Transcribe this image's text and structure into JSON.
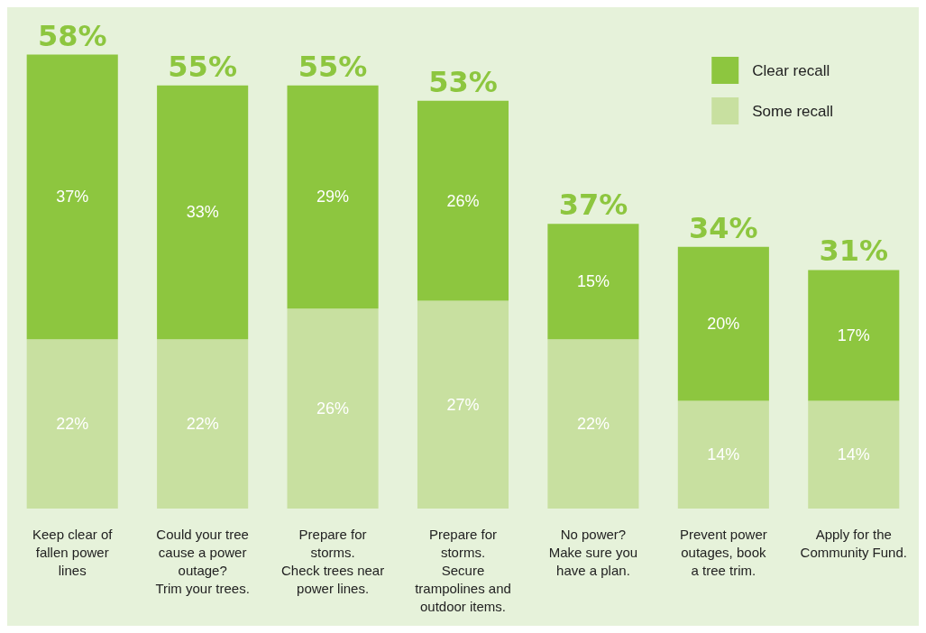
{
  "chart_data": {
    "type": "bar",
    "stacked": true,
    "categories": [
      "Keep clear of\nfallen power\nlines",
      "Could your tree\ncause a power\noutage?\nTrim your trees.",
      "Prepare for\nstorms.\nCheck trees near\npower lines.",
      "Prepare for\nstorms.\nSecure\ntrampolines and\noutdoor items.",
      "No power?\nMake sure you\nhave a plan.",
      "Prevent power\noutages, book\na tree trim.",
      "Apply for the\nCommunity Fund."
    ],
    "series": [
      {
        "name": "Some recall",
        "color": "#c8e0a0",
        "values": [
          22,
          22,
          26,
          27,
          22,
          14,
          14
        ],
        "value_labels": [
          "22%",
          "22%",
          "26%",
          "27%",
          "22%",
          "14%",
          "14%"
        ]
      },
      {
        "name": "Clear recall",
        "color": "#8dc63f",
        "values": [
          37,
          33,
          29,
          26,
          15,
          20,
          17
        ],
        "value_labels": [
          "37%",
          "33%",
          "29%",
          "26%",
          "15%",
          "20%",
          "17%"
        ]
      }
    ],
    "totals": [
      "58%",
      "55%",
      "55%",
      "53%",
      "37%",
      "34%",
      "31%"
    ],
    "legend": "top right"
  }
}
